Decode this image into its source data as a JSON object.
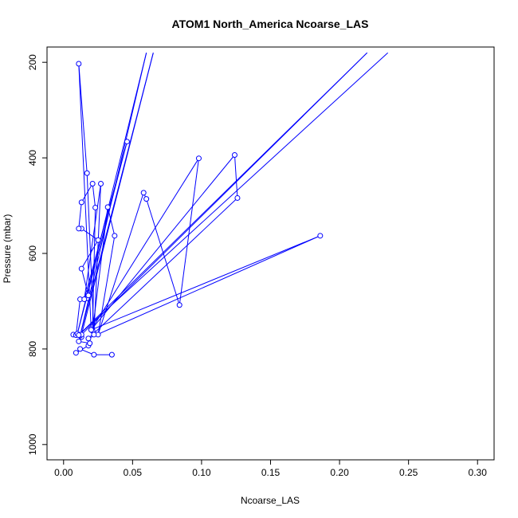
{
  "chart_data": {
    "type": "scatter",
    "title": "ATOM1 North_America Ncoarse_LAS",
    "xlabel": "Ncoarse_LAS",
    "ylabel": "Pressure (mbar)",
    "xlim": [
      0.0,
      0.3
    ],
    "ylim": [
      1000,
      200
    ],
    "y_reversed": true,
    "grid": false,
    "x_ticks": [
      "0.00",
      "0.05",
      "0.10",
      "0.15",
      "0.20",
      "0.25",
      "0.30"
    ],
    "y_ticks": [
      "200",
      "400",
      "600",
      "800",
      "1000"
    ],
    "series": [
      {
        "color": "#0000ff",
        "marker": "open-circle",
        "connected": true,
        "points": [
          [
            0.035,
            812
          ],
          [
            0.022,
            812
          ],
          [
            0.012,
            800
          ],
          [
            0.009,
            808
          ],
          [
            0.018,
            793
          ],
          [
            0.019,
            788
          ],
          [
            0.011,
            784
          ],
          [
            0.013,
            775
          ],
          [
            0.007,
            770
          ],
          [
            0.009,
            771
          ],
          [
            0.012,
            696
          ],
          [
            0.017,
            694
          ],
          [
            0.018,
            688
          ],
          [
            0.013,
            632
          ],
          [
            0.025,
            572
          ],
          [
            0.013,
            548
          ],
          [
            0.011,
            548
          ],
          [
            0.013,
            493
          ],
          [
            0.021,
            454
          ],
          [
            0.023,
            504
          ],
          [
            0.021,
            762
          ],
          [
            0.032,
            503
          ],
          [
            0.037,
            563
          ],
          [
            0.025,
            770
          ],
          [
            0.058,
            473
          ],
          [
            0.06,
            486
          ],
          [
            0.084,
            708
          ],
          [
            0.098,
            401
          ],
          [
            0.02,
            760
          ],
          [
            0.124,
            394
          ],
          [
            0.126,
            484
          ],
          [
            0.018,
            778
          ],
          [
            0.186,
            563
          ],
          [
            0.02,
            760
          ],
          [
            0.011,
            203
          ],
          [
            0.017,
            432
          ],
          [
            0.022,
            770
          ],
          [
            0.027,
            454
          ],
          [
            0.015,
            696
          ],
          [
            0.046,
            366
          ],
          [
            0.01,
            768
          ],
          [
            0.06,
            180
          ],
          [
            0.012,
            772
          ],
          [
            0.065,
            180
          ],
          [
            0.013,
            770
          ],
          [
            0.22,
            180
          ],
          [
            0.011,
            771
          ],
          [
            0.235,
            180
          ]
        ]
      }
    ]
  }
}
